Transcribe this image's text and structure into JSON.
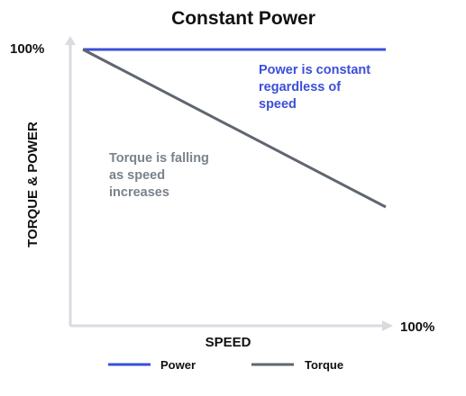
{
  "chart_data": {
    "type": "line",
    "title": "Constant Power",
    "xlabel": "SPEED",
    "ylabel": "TORQUE & POWER",
    "x_max_label": "100%",
    "y_max_label": "100%",
    "xlim": [
      0,
      100
    ],
    "ylim": [
      0,
      100
    ],
    "grid": false,
    "legend_position": "bottom",
    "series": [
      {
        "name": "Power",
        "color": "#3b4fd8",
        "x": [
          4,
          100
        ],
        "y": [
          100,
          100
        ]
      },
      {
        "name": "Torque",
        "color": "#5f6670",
        "x": [
          4,
          100
        ],
        "y": [
          100,
          43
        ]
      }
    ],
    "annotations": [
      {
        "lines": [
          "Power is constant",
          "regardless of",
          "speed"
        ],
        "color": "#3b4fd8"
      },
      {
        "lines": [
          "Torque is falling",
          "as speed",
          "increases"
        ],
        "color": "#7a828c"
      }
    ]
  }
}
